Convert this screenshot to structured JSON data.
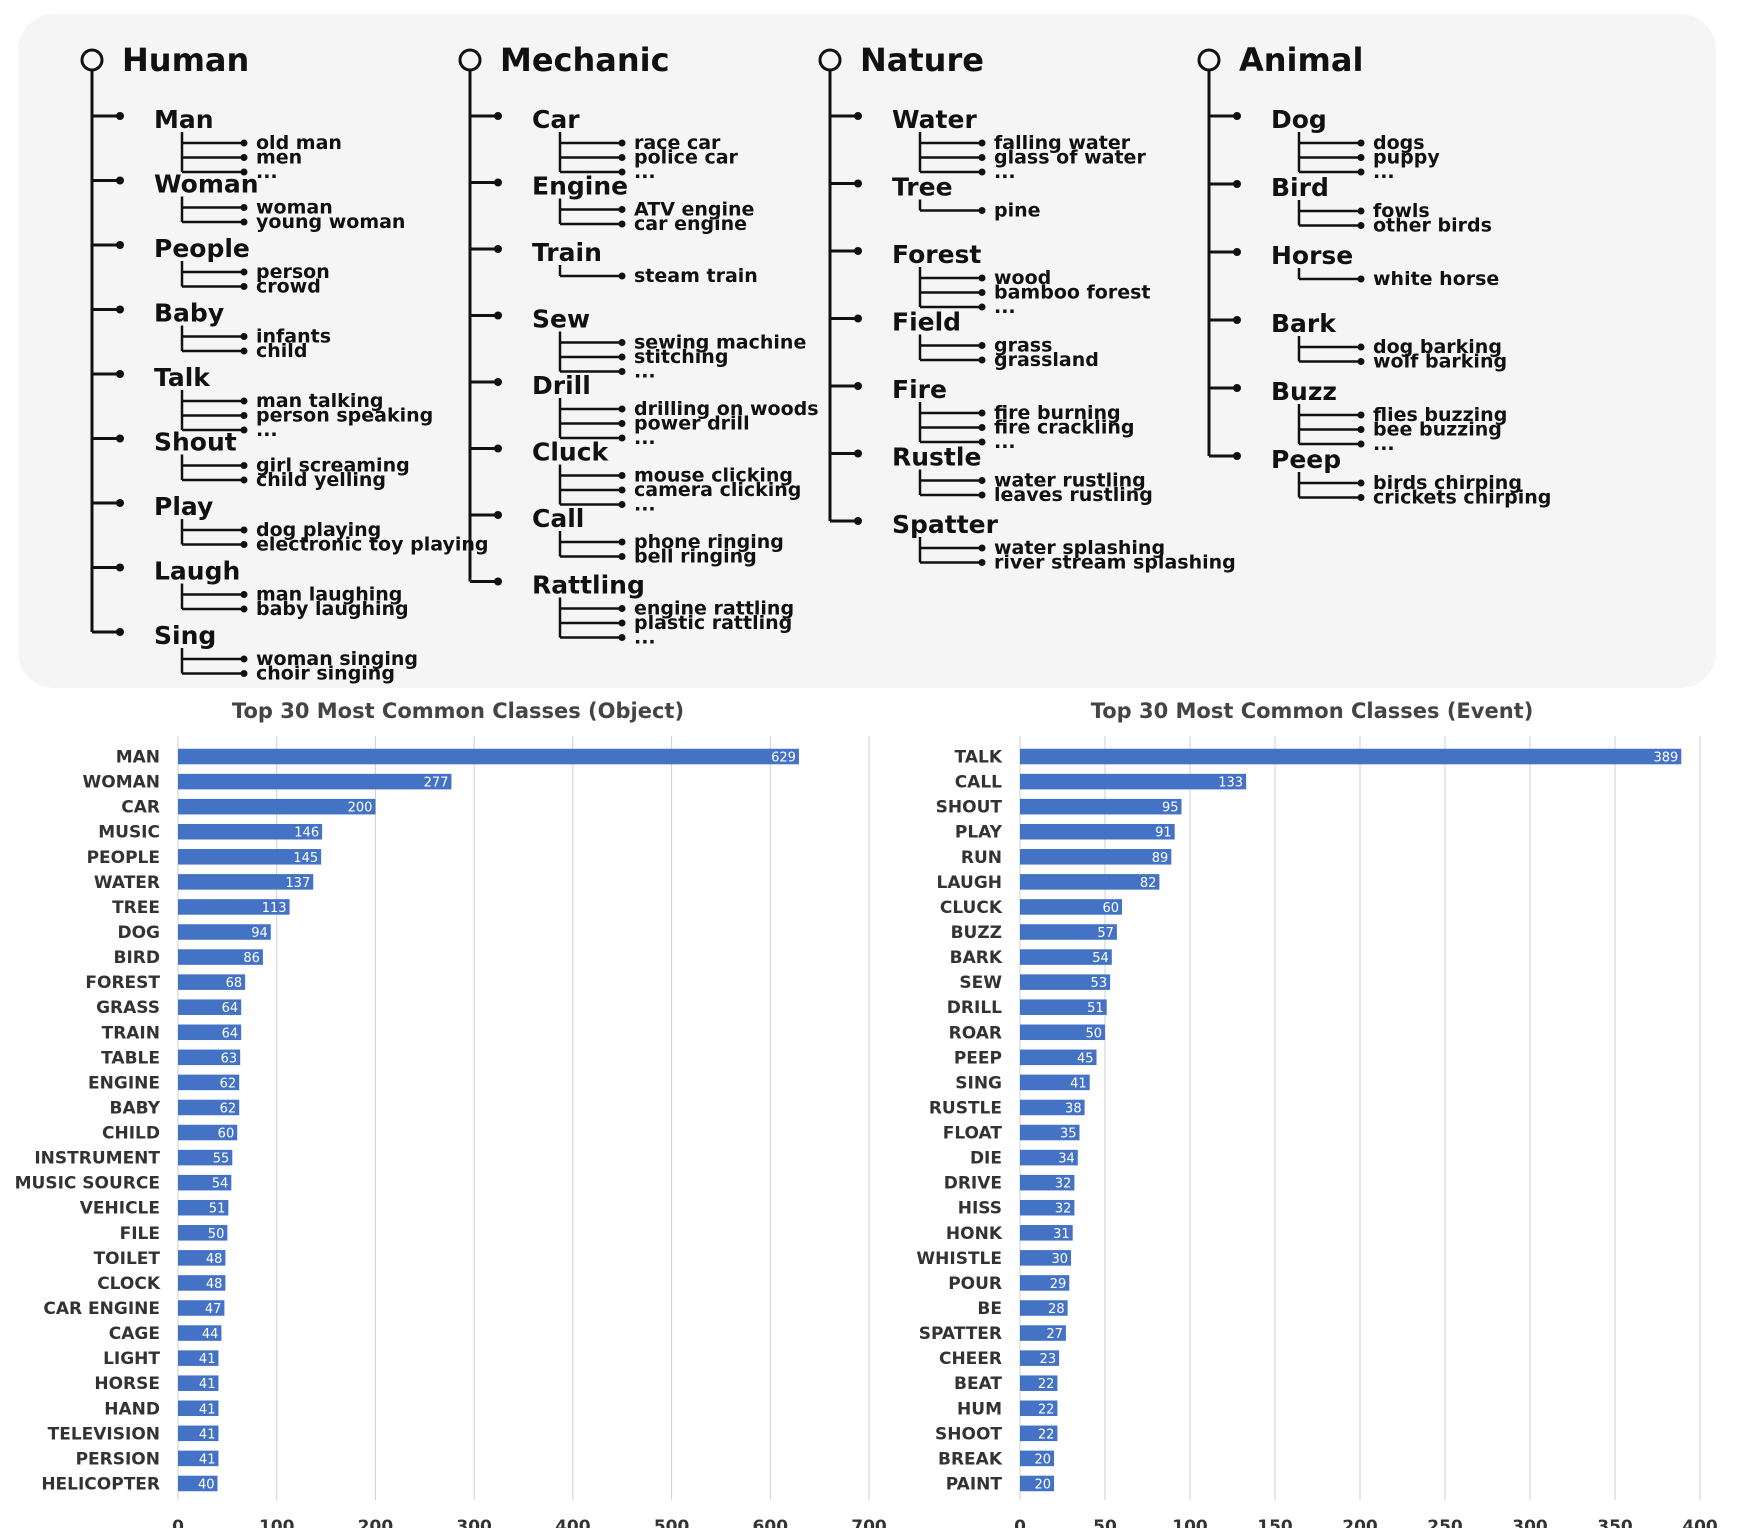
{
  "taxonomy": [
    {
      "name": "Human",
      "children": [
        {
          "name": "Man",
          "items": [
            "old man",
            "men",
            "..."
          ]
        },
        {
          "name": "Woman",
          "items": [
            "woman",
            "young woman"
          ]
        },
        {
          "name": "People",
          "items": [
            "person",
            "crowd"
          ]
        },
        {
          "name": "Baby",
          "items": [
            "infants",
            "child"
          ]
        },
        {
          "name": "Talk",
          "items": [
            "man talking",
            "person speaking",
            "..."
          ]
        },
        {
          "name": "Shout",
          "items": [
            "girl screaming",
            "child yelling"
          ]
        },
        {
          "name": "Play",
          "items": [
            "dog playing",
            "electronic toy playing"
          ]
        },
        {
          "name": "Laugh",
          "items": [
            "man laughing",
            "baby laughing"
          ]
        },
        {
          "name": "Sing",
          "items": [
            "woman singing",
            "choir singing"
          ]
        }
      ]
    },
    {
      "name": "Mechanic",
      "children": [
        {
          "name": "Car",
          "items": [
            "race car",
            "police car",
            "..."
          ]
        },
        {
          "name": "Engine",
          "items": [
            "ATV engine",
            "car engine"
          ]
        },
        {
          "name": "Train",
          "items": [
            "steam train"
          ]
        },
        {
          "name": "Sew",
          "items": [
            "sewing machine",
            "stitching",
            "..."
          ]
        },
        {
          "name": "Drill",
          "items": [
            "drilling on woods",
            "power drill",
            "..."
          ]
        },
        {
          "name": "Cluck",
          "items": [
            "mouse clicking",
            "camera clicking",
            "..."
          ]
        },
        {
          "name": "Call",
          "items": [
            "phone ringing",
            "bell ringing"
          ]
        },
        {
          "name": "Rattling",
          "items": [
            "engine rattling",
            "plastic rattling",
            "..."
          ]
        }
      ]
    },
    {
      "name": "Nature",
      "children": [
        {
          "name": "Water",
          "items": [
            "falling water",
            "glass of water",
            "..."
          ]
        },
        {
          "name": "Tree",
          "items": [
            "pine"
          ]
        },
        {
          "name": "Forest",
          "items": [
            "wood",
            "bamboo forest",
            "..."
          ]
        },
        {
          "name": "Field",
          "items": [
            "grass",
            "grassland"
          ]
        },
        {
          "name": "Fire",
          "items": [
            "fire burning",
            "fire crackling",
            "..."
          ]
        },
        {
          "name": "Rustle",
          "items": [
            "water rustling",
            "leaves rustling"
          ]
        },
        {
          "name": "Spatter",
          "items": [
            "water splashing",
            "river stream splashing"
          ]
        }
      ]
    },
    {
      "name": "Animal",
      "children": [
        {
          "name": "Dog",
          "items": [
            "dogs",
            "puppy",
            "..."
          ]
        },
        {
          "name": "Bird",
          "items": [
            "fowls",
            "other birds"
          ]
        },
        {
          "name": "Horse",
          "items": [
            "white horse"
          ]
        },
        {
          "name": "Bark",
          "items": [
            "dog barking",
            "wolf barking"
          ]
        },
        {
          "name": "Buzz",
          "items": [
            "flies buzzing",
            "bee buzzing",
            "..."
          ]
        },
        {
          "name": "Peep",
          "items": [
            "birds chirping",
            "crickets chirping"
          ]
        }
      ]
    }
  ],
  "chart_data": [
    {
      "type": "bar",
      "orientation": "horizontal",
      "title": "Top 30 Most Common Classes (Object)",
      "categories": [
        "MAN",
        "WOMAN",
        "CAR",
        "MUSIC",
        "PEOPLE",
        "WATER",
        "TREE",
        "DOG",
        "BIRD",
        "FOREST",
        "GRASS",
        "TRAIN",
        "TABLE",
        "ENGINE",
        "BABY",
        "CHILD",
        "INSTRUMENT",
        "MUSIC SOURCE",
        "VEHICLE",
        "FILE",
        "TOILET",
        "CLOCK",
        "CAR ENGINE",
        "CAGE",
        "LIGHT",
        "HORSE",
        "HAND",
        "TELEVISION",
        "PERSION",
        "HELICOPTER"
      ],
      "values": [
        629,
        277,
        200,
        146,
        145,
        137,
        113,
        94,
        86,
        68,
        64,
        64,
        63,
        62,
        62,
        60,
        55,
        54,
        51,
        50,
        48,
        48,
        47,
        44,
        41,
        41,
        41,
        41,
        41,
        40
      ],
      "xlim": [
        0,
        700
      ],
      "xticks": [
        0,
        100,
        200,
        300,
        400,
        500,
        600,
        700
      ],
      "grid": "vertical",
      "bar_color": "#4472c4"
    },
    {
      "type": "bar",
      "orientation": "horizontal",
      "title": "Top 30 Most Common Classes (Event)",
      "categories": [
        "TALK",
        "CALL",
        "SHOUT",
        "PLAY",
        "RUN",
        "LAUGH",
        "CLUCK",
        "BUZZ",
        "BARK",
        "SEW",
        "DRILL",
        "ROAR",
        "PEEP",
        "SING",
        "RUSTLE",
        "FLOAT",
        "DIE",
        "DRIVE",
        "HISS",
        "HONK",
        "WHISTLE",
        "POUR",
        "BE",
        "SPATTER",
        "CHEER",
        "BEAT",
        "HUM",
        "SHOOT",
        "BREAK",
        "PAINT"
      ],
      "values": [
        389,
        133,
        95,
        91,
        89,
        82,
        60,
        57,
        54,
        53,
        51,
        50,
        45,
        41,
        38,
        35,
        34,
        32,
        32,
        31,
        30,
        29,
        28,
        27,
        23,
        22,
        22,
        22,
        20,
        20
      ],
      "xlim": [
        0,
        400
      ],
      "xticks": [
        0,
        50,
        100,
        150,
        200,
        250,
        300,
        350,
        400
      ],
      "grid": "vertical",
      "bar_color": "#4472c4"
    }
  ]
}
